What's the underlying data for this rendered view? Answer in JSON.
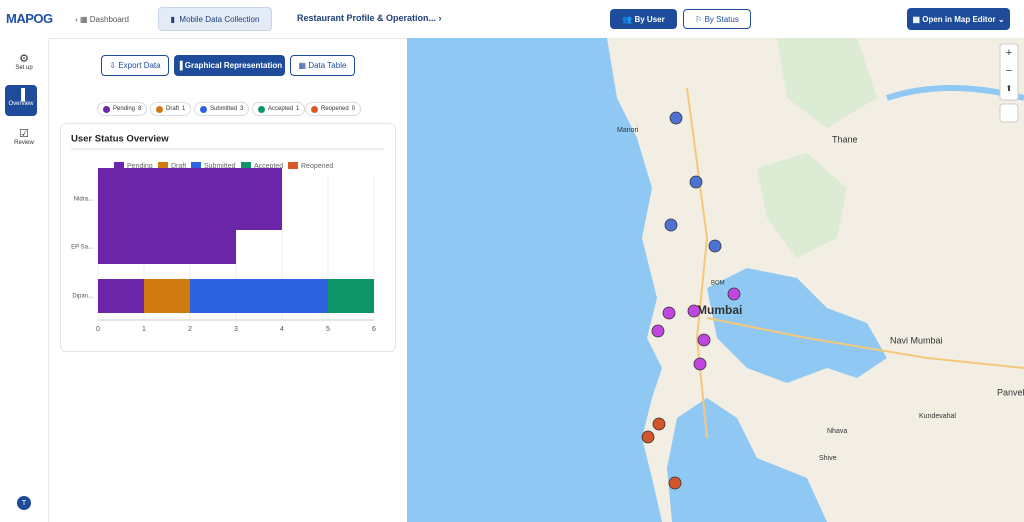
{
  "brand": "MAPOG",
  "breadcrumb": [
    "Dashboard",
    "Mobile Data Collection",
    "Restaurant Profile & Operation..."
  ],
  "view_buttons": [
    "By User",
    "By Status"
  ],
  "editor_button": "Open in Map Editor",
  "sidebar": [
    "Set up",
    "Overview",
    "Review"
  ],
  "avatar": "T",
  "tabs": [
    "Export Data",
    "Graphical Representation",
    "Data Table"
  ],
  "status_pills": [
    {
      "label": "Pending",
      "count": 8
    },
    {
      "label": "Draft",
      "count": 1
    },
    {
      "label": "Submitted",
      "count": 3
    },
    {
      "label": "Accepted",
      "count": 1
    },
    {
      "label": "Reopened",
      "count": 0
    }
  ],
  "chart_data": {
    "type": "hbar-stacked",
    "title": "User Status Overview",
    "categories": [
      "Nidra...",
      "EP Sa...",
      "Dipan..."
    ],
    "series": [
      {
        "name": "Pending",
        "color": "#6a25a8",
        "values": [
          4,
          3,
          1
        ]
      },
      {
        "name": "Draft",
        "color": "#d27a12",
        "values": [
          0,
          0,
          1
        ]
      },
      {
        "name": "Submitted",
        "color": "#2d63e0",
        "values": [
          0,
          0,
          3
        ]
      },
      {
        "name": "Accepted",
        "color": "#0f9468",
        "values": [
          0,
          0,
          1
        ]
      },
      {
        "name": "Reopened",
        "color": "#d9582a",
        "values": [
          0,
          0,
          0
        ]
      }
    ],
    "xlim": [
      0,
      6
    ],
    "xticks": [
      0,
      1,
      2,
      3,
      4,
      5,
      6
    ],
    "grid": true
  },
  "map": {
    "labels": [
      "Thane",
      "Mumbai",
      "Navi Mumbai",
      "Panvel",
      "Kundevahal",
      "Nhava",
      "Manori",
      "Shive",
      "BOM"
    ]
  }
}
